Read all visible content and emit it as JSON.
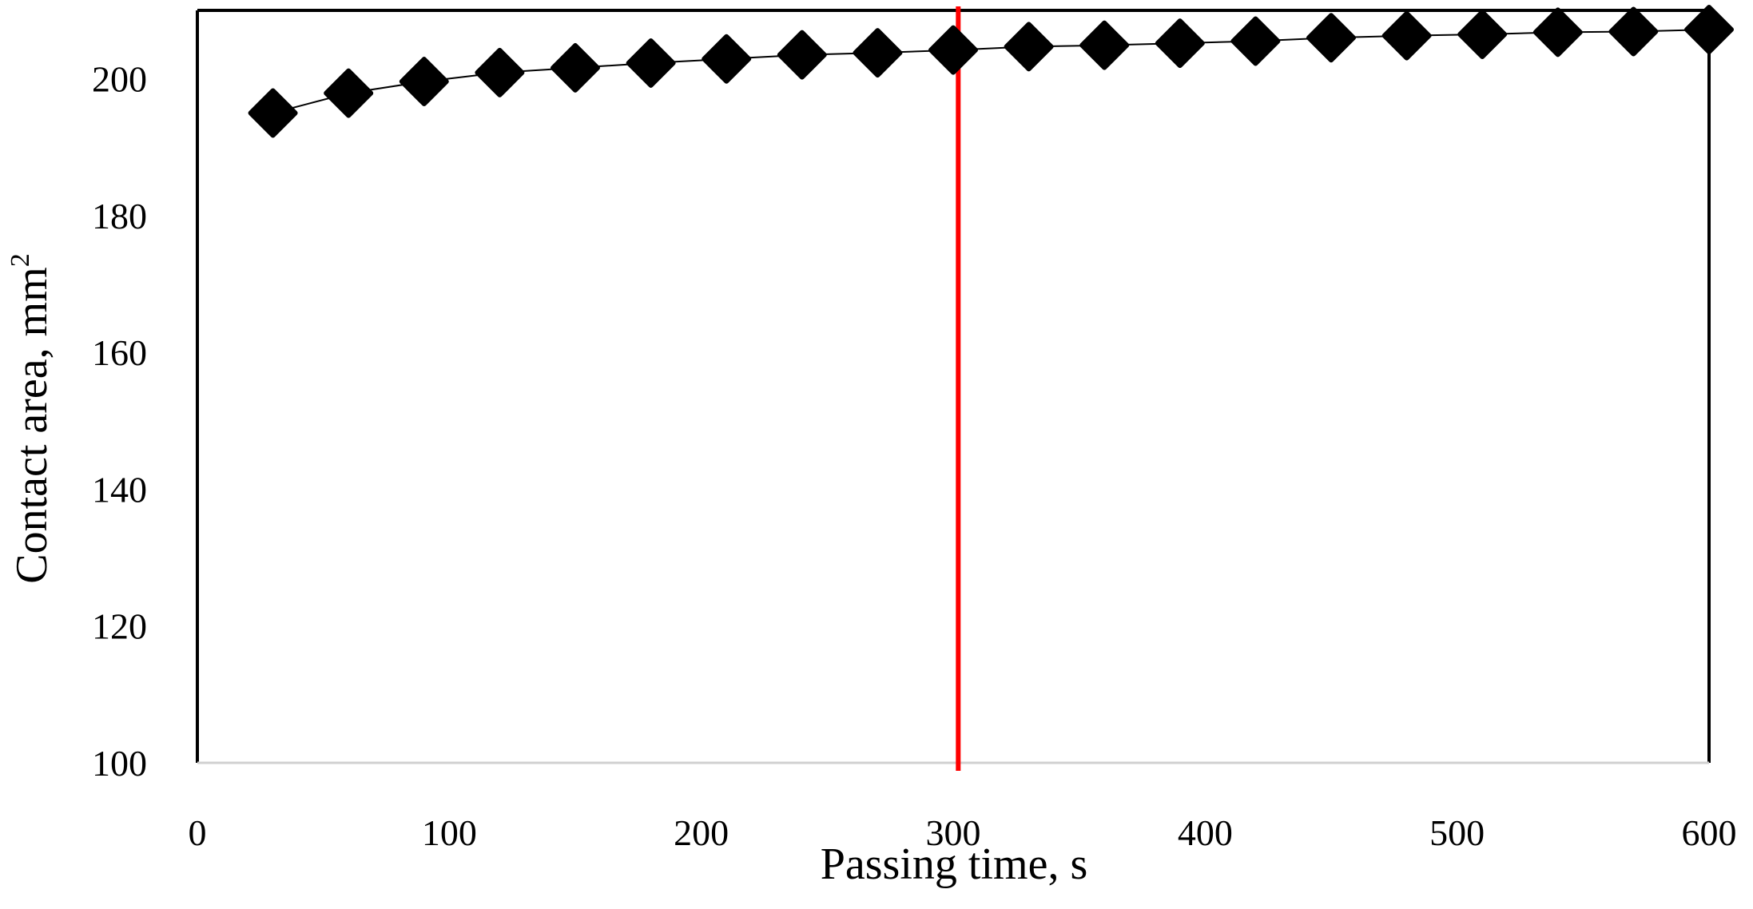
{
  "chart_data": {
    "type": "scatter",
    "title": "",
    "xlabel": "Passing time, s",
    "ylabel": "Contact area, mm",
    "ylabel_superscript": "2",
    "xlim": [
      0,
      600
    ],
    "ylim": [
      100,
      210
    ],
    "x_ticks": [
      "0",
      "100",
      "200",
      "300",
      "400",
      "500",
      "600"
    ],
    "y_ticks": [
      "100",
      "120",
      "140",
      "160",
      "180",
      "200"
    ],
    "grid": false,
    "legend": "none",
    "marker": "diamond",
    "marker_color": "#000000",
    "line_color": "#000000",
    "vline": {
      "x": 302,
      "color": "#ff0000"
    },
    "series": [
      {
        "x": [
          30,
          60,
          90,
          120,
          150,
          180,
          210,
          240,
          270,
          300,
          330,
          360,
          390,
          420,
          450,
          480,
          510,
          540,
          570,
          600
        ],
        "y": [
          195.0,
          197.9,
          199.6,
          200.9,
          201.6,
          202.3,
          202.9,
          203.5,
          203.8,
          204.2,
          204.7,
          204.9,
          205.2,
          205.5,
          206.0,
          206.3,
          206.5,
          206.8,
          206.9,
          207.2
        ]
      }
    ]
  }
}
